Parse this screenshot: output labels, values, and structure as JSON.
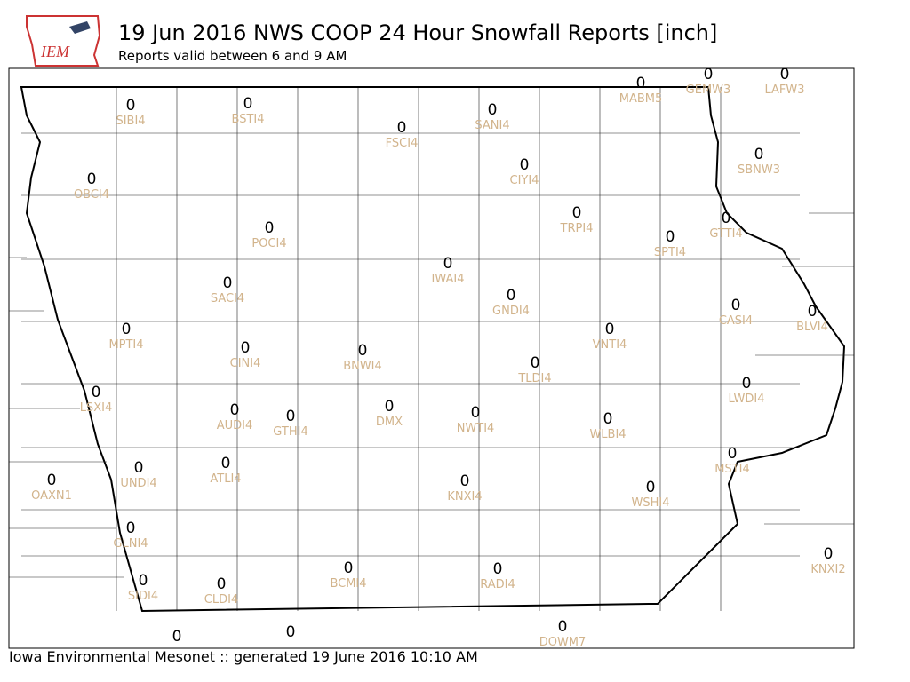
{
  "header": {
    "logo": "IEM",
    "title": "19 Jun 2016 NWS COOP 24 Hour Snowfall Reports [inch]",
    "subtitle": "Reports valid between 6 and 9 AM"
  },
  "stations": [
    {
      "id": "SIBI4",
      "value": 0
    },
    {
      "id": "BSTI4",
      "value": 0
    },
    {
      "id": "FSCI4",
      "value": 0
    },
    {
      "id": "SANI4",
      "value": 0
    },
    {
      "id": "MABM5",
      "value": 0
    },
    {
      "id": "GEMW3",
      "value": 0
    },
    {
      "id": "LAFW3",
      "value": 0
    },
    {
      "id": "OBCI4",
      "value": 0
    },
    {
      "id": "CIYI4",
      "value": 0
    },
    {
      "id": "SBNW3",
      "value": 0
    },
    {
      "id": "POCI4",
      "value": 0
    },
    {
      "id": "TRPI4",
      "value": 0
    },
    {
      "id": "GTTI4",
      "value": 0
    },
    {
      "id": "SPTI4",
      "value": 0
    },
    {
      "id": "IWAI4",
      "value": 0
    },
    {
      "id": "SACI4",
      "value": 0
    },
    {
      "id": "GNDI4",
      "value": 0
    },
    {
      "id": "CASI4",
      "value": 0
    },
    {
      "id": "BLVI4",
      "value": 0
    },
    {
      "id": "MPTI4",
      "value": 0
    },
    {
      "id": "VNTI4",
      "value": 0
    },
    {
      "id": "CINI4",
      "value": 0
    },
    {
      "id": "BNWI4",
      "value": 0
    },
    {
      "id": "TLDI4",
      "value": 0
    },
    {
      "id": "LWDI4",
      "value": 0
    },
    {
      "id": "LSXI4",
      "value": 0
    },
    {
      "id": "AUDI4",
      "value": 0
    },
    {
      "id": "GTHI4",
      "value": 0
    },
    {
      "id": "DMX",
      "value": 0
    },
    {
      "id": "NWTI4",
      "value": 0
    },
    {
      "id": "WLBI4",
      "value": 0
    },
    {
      "id": "MSTI4",
      "value": 0
    },
    {
      "id": "UNDI4",
      "value": 0
    },
    {
      "id": "ATLI4",
      "value": 0
    },
    {
      "id": "OAXN1",
      "value": 0
    },
    {
      "id": "KNXI4",
      "value": 0
    },
    {
      "id": "WSHI4",
      "value": 0
    },
    {
      "id": "GLNI4",
      "value": 0
    },
    {
      "id": "KNXI2",
      "value": 0
    },
    {
      "id": "BCMI4",
      "value": 0
    },
    {
      "id": "RADI4",
      "value": 0
    },
    {
      "id": "SIDI4",
      "value": 0
    },
    {
      "id": "CLDI4",
      "value": 0
    },
    {
      "id": "DOWM7",
      "value": 0
    },
    {
      "value": 0
    },
    {
      "value": 0
    }
  ],
  "footer": "Iowa Environmental Mesonet :: generated 19 June 2016 10:10 AM"
}
